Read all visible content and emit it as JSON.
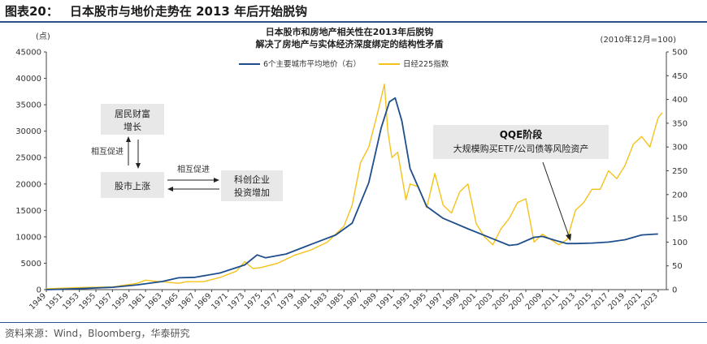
{
  "figure": {
    "label": "图表20：",
    "title": "日本股市与地价走势在 2013 年后开始脱钩",
    "source": "资料来源：Wind，Bloomberg，华泰研究"
  },
  "chart_data": {
    "type": "line",
    "title_line1": "日本股市和房地产相关性在2013年后脱钩",
    "title_line2": "解决了房地产与实体经济深度绑定的结构性矛盾",
    "left_unit": "(点)",
    "right_unit": "(2010年12月=100)",
    "ylim_left": [
      0,
      45000
    ],
    "ylim_right": [
      0,
      500
    ],
    "yticks_left": [
      "0",
      "5000",
      "10000",
      "15000",
      "20000",
      "25000",
      "30000",
      "35000",
      "40000",
      "45000"
    ],
    "yticks_right": [
      "0",
      "50",
      "100",
      "150",
      "200",
      "250",
      "300",
      "350",
      "400",
      "450",
      "500"
    ],
    "xlim": [
      1949,
      2024
    ],
    "xticks": [
      "1949",
      "1951",
      "1953",
      "1955",
      "1957",
      "1959",
      "1961",
      "1963",
      "1965",
      "1967",
      "1969",
      "1971",
      "1973",
      "1975",
      "1977",
      "1979",
      "1981",
      "1983",
      "1985",
      "1987",
      "1989",
      "1991",
      "1993",
      "1995",
      "1997",
      "1999",
      "2001",
      "2003",
      "2005",
      "2007",
      "2009",
      "2011",
      "2013",
      "2015",
      "2017",
      "2019",
      "2021",
      "2023"
    ],
    "series": [
      {
        "name": "6个主要城市平均地价（右）",
        "axis": "right",
        "color": "#1f4e8c",
        "x": [
          1949,
          1953,
          1957,
          1960,
          1963,
          1965,
          1967,
          1970,
          1973,
          1974.5,
          1975.5,
          1978,
          1981,
          1984,
          1986,
          1988,
          1989.5,
          1990.5,
          1991.2,
          1992,
          1993,
          1995,
          1997,
          2000,
          2003,
          2005,
          2006,
          2008,
          2009,
          2010.5,
          2012,
          2013,
          2015,
          2017,
          2019,
          2021,
          2023
        ],
        "values": [
          0,
          2,
          5,
          10,
          17,
          25,
          26,
          35,
          52,
          73,
          67,
          75,
          95,
          115,
          140,
          225,
          340,
          395,
          403,
          355,
          255,
          175,
          150,
          128,
          107,
          93,
          95,
          110,
          112,
          104,
          97,
          97,
          98,
          100,
          105,
          115,
          117
        ]
      },
      {
        "name": "日经225指数",
        "axis": "left",
        "color": "#f5c21b",
        "x": [
          1949,
          1953,
          1957,
          1960,
          1961,
          1962,
          1963,
          1965,
          1966,
          1968,
          1970,
          1972,
          1973,
          1974,
          1975,
          1977,
          1979,
          1981,
          1983,
          1985,
          1986,
          1987,
          1988,
          1989,
          1989.9,
          1990.3,
          1990.8,
          1991.5,
          1992.5,
          1993,
          1994,
          1995,
          1996,
          1997,
          1998,
          1999,
          2000,
          2001,
          2002,
          2003,
          2004,
          2005,
          2006,
          2007,
          2008,
          2009,
          2010,
          2011,
          2012,
          2013,
          2014,
          2015,
          2016,
          2017,
          2018,
          2019,
          2020,
          2021,
          2022,
          2023,
          2023.5
        ],
        "values": [
          170,
          400,
          500,
          1200,
          1800,
          1600,
          1500,
          1200,
          1500,
          1500,
          2300,
          3500,
          5300,
          4000,
          4200,
          5000,
          6500,
          7500,
          9000,
          12000,
          16000,
          24000,
          27000,
          33000,
          38900,
          30000,
          25000,
          26000,
          17000,
          20000,
          19500,
          15500,
          22000,
          16000,
          14500,
          18500,
          20000,
          12500,
          10000,
          8500,
          11500,
          13500,
          16500,
          17200,
          9000,
          10500,
          9500,
          8500,
          9500,
          15000,
          16500,
          19000,
          19000,
          22500,
          21000,
          23500,
          27500,
          29000,
          27000,
          32500,
          33500
        ]
      }
    ],
    "annotation_left": {
      "box1": [
        "居民财富",
        "增长"
      ],
      "label_vertical": "相互促进",
      "box2": "股市上涨",
      "label_horizontal": "相互促进",
      "box3": [
        "科创企业",
        "投资增加"
      ]
    },
    "annotation_right": {
      "title": "QQE阶段",
      "subtitle": "大规模购买ETF/公司债等风险资产"
    }
  }
}
